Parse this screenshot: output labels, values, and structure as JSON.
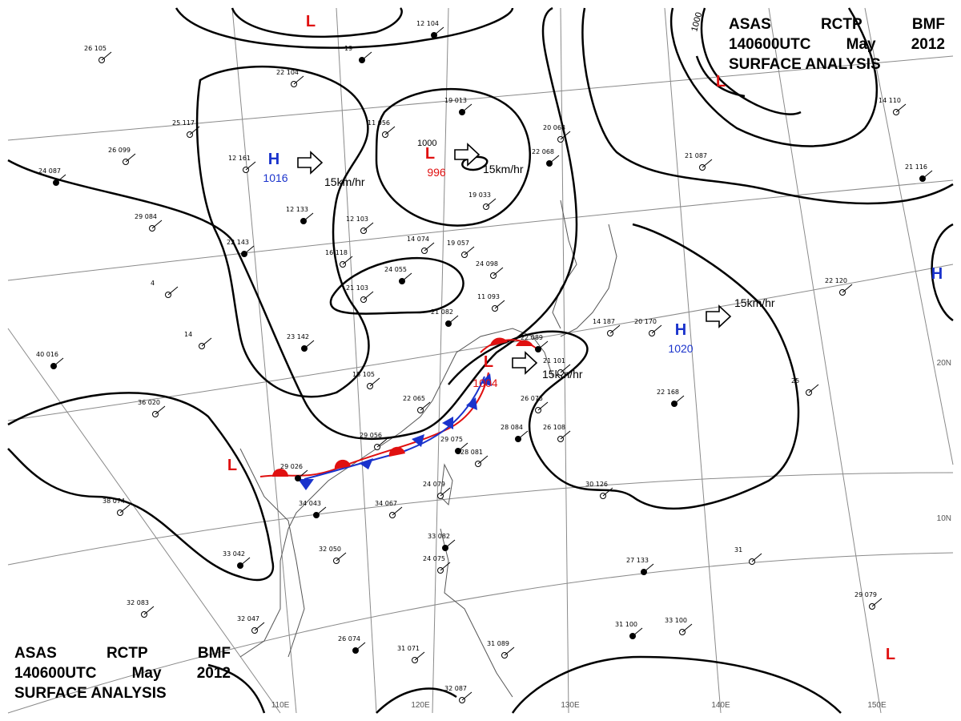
{
  "header": {
    "line1": [
      "ASAS",
      "RCTP",
      "BMF"
    ],
    "line2": [
      "140600UTC",
      "May",
      "2012"
    ],
    "line3": "SURFACE ANALYSIS"
  },
  "colors": {
    "high": "#1a33cc",
    "low": "#e01010",
    "warm_front": "#e01010",
    "cold_front": "#1a33cc",
    "isobar": "#000000",
    "grid": "#888888",
    "coast": "#555555"
  },
  "grid_labels": {
    "longitudes": [
      "110E",
      "120E",
      "130E",
      "140E",
      "150E"
    ],
    "latitudes": [
      "20N",
      "10N"
    ]
  },
  "pressure_systems": [
    {
      "type": "L",
      "value": ""
    },
    {
      "type": "H",
      "value": "1016",
      "motion": "15km/hr"
    },
    {
      "type": "L",
      "value": "996",
      "contour": "1000",
      "motion": "15km/hr"
    },
    {
      "type": "L",
      "value": "",
      "contour": "1000"
    },
    {
      "type": "H",
      "value": "1020",
      "motion": "15km/hr"
    },
    {
      "type": "L",
      "value": "1004",
      "motion": "15km/hr"
    },
    {
      "type": "L",
      "value": ""
    },
    {
      "type": "H",
      "value": ""
    },
    {
      "type": "L",
      "value": ""
    }
  ],
  "station_numbers": [
    "12 104",
    "26 105",
    "22 104",
    "19 013",
    "25 117",
    "26 099",
    "24 087",
    "12 161",
    "29 084",
    "22 143",
    "4",
    "14",
    "40 016",
    "36 020",
    "38 074",
    "33 042",
    "32 083",
    "32 047",
    "26 074",
    "31 071",
    "32 087",
    "34 043",
    "32 050",
    "34 067",
    "33 082",
    "24 075",
    "31 089",
    "29 026",
    "29 056",
    "22 065",
    "29 075",
    "24 079",
    "28 081",
    "28 084",
    "26 075",
    "26 108",
    "22 089",
    "21 101",
    "18 105",
    "21 082",
    "14 074",
    "19 057",
    "24 055",
    "11 093",
    "21 103",
    "23 142",
    "16 118",
    "12 103",
    "12 133",
    "19 033",
    "20 068",
    "22 068",
    "21 087",
    "14 110",
    "21 116",
    "22 120",
    "25",
    "22 168",
    "20 170",
    "30 126",
    "27 133",
    "31",
    "29 079",
    "31 100",
    "33 100",
    "11 056",
    "19",
    "24 098",
    "14 187"
  ]
}
